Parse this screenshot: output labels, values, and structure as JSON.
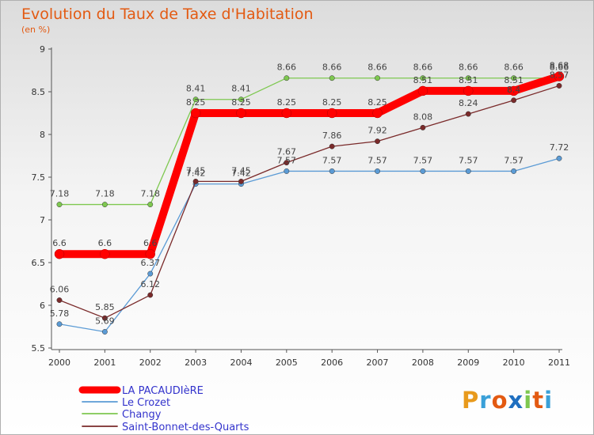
{
  "title": "Evolution du Taux de Taxe d'Habitation",
  "unit_label": "(en %)",
  "logo_text": "Proxiti",
  "colors": {
    "title": "#e35a12",
    "legend_text": "#3333cc",
    "axis": "#444444"
  },
  "chart_data": {
    "type": "line",
    "x": [
      2000,
      2001,
      2002,
      2003,
      2004,
      2005,
      2006,
      2007,
      2008,
      2009,
      2010,
      2011
    ],
    "ylim": [
      5.5,
      9
    ],
    "yticks": [
      5.5,
      6,
      6.5,
      7,
      7.5,
      8,
      8.5,
      9
    ],
    "grid": false,
    "legend_position": "bottom-left",
    "series": [
      {
        "name": "LA PACAUDIèRE",
        "color": "#ff0000",
        "values": [
          6.6,
          6.6,
          6.6,
          8.25,
          8.25,
          8.25,
          8.25,
          8.25,
          8.51,
          8.51,
          8.51,
          8.68
        ],
        "labels": [
          "6.6",
          "6.6",
          "6.6",
          "8.25",
          "8.25",
          "8.25",
          "8.25",
          "8.25",
          "8.51",
          "8.51",
          "8.51",
          "8.68"
        ]
      },
      {
        "name": "Le Crozet",
        "color": "#5b9bd5",
        "values": [
          5.78,
          5.69,
          6.37,
          7.42,
          7.42,
          7.57,
          7.57,
          7.57,
          7.57,
          7.57,
          7.57,
          7.72
        ],
        "labels": [
          "5.78",
          "5.69",
          "6.37",
          "7.42",
          "7.42",
          "7.57",
          "7.57",
          "7.57",
          "7.57",
          "7.57",
          "7.57",
          "7.72"
        ]
      },
      {
        "name": "Changy",
        "color": "#7ec850",
        "values": [
          7.18,
          7.18,
          7.18,
          8.41,
          8.41,
          8.66,
          8.66,
          8.66,
          8.66,
          8.66,
          8.66,
          8.66
        ],
        "labels": [
          "7.18",
          "7.18",
          "7.18",
          "8.41",
          "8.41",
          "8.66",
          "8.66",
          "8.66",
          "8.66",
          "8.66",
          "8.66",
          "8.66"
        ]
      },
      {
        "name": "Saint-Bonnet-des-Quarts",
        "color": "#7a2a2a",
        "values": [
          6.06,
          5.85,
          6.12,
          7.45,
          7.45,
          7.67,
          7.86,
          7.92,
          8.08,
          8.24,
          8.4,
          8.57
        ],
        "labels": [
          "6.06",
          "5.85",
          "6.12",
          "7.45",
          "7.45",
          "7.67",
          "7.86",
          "7.92",
          "8.08",
          "8.24",
          "8.4",
          "8.57"
        ]
      }
    ]
  }
}
